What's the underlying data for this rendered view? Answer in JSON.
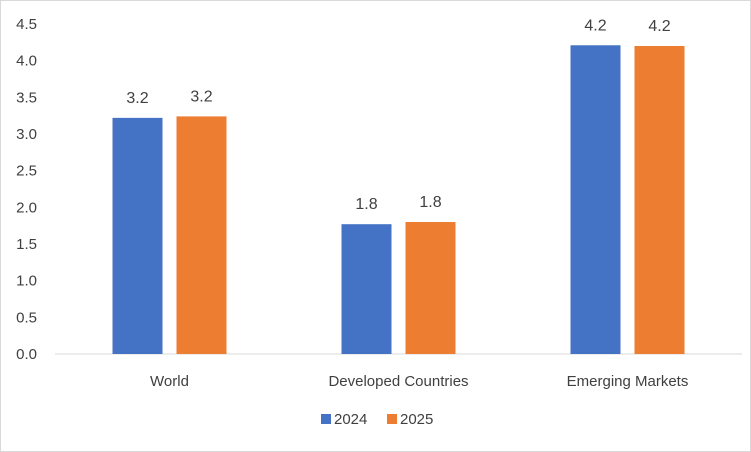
{
  "chart_data": {
    "type": "bar",
    "title": "",
    "xlabel": "",
    "ylabel": "",
    "categories": [
      "World",
      "Developed Countries",
      "Emerging Markets"
    ],
    "series": [
      {
        "name": "2024",
        "color": "#4472c4",
        "values": [
          3.22,
          1.77,
          4.21
        ]
      },
      {
        "name": "2025",
        "color": "#ed7d31",
        "values": [
          3.24,
          1.8,
          4.2
        ]
      }
    ],
    "data_labels": [
      [
        "3.2",
        "1.8",
        "4.2"
      ],
      [
        "3.2",
        "1.8",
        "4.2"
      ]
    ],
    "ylim": [
      0,
      4.5
    ],
    "ytick_labels": [
      "0.0",
      "0.5",
      "1.0",
      "1.5",
      "2.0",
      "2.5",
      "3.0",
      "3.5",
      "4.0",
      "4.5"
    ],
    "grid": false,
    "legend_position": "bottom"
  }
}
